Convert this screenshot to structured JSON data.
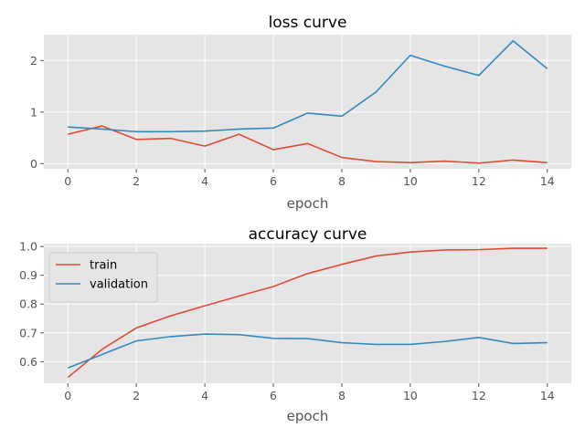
{
  "chart_data": [
    {
      "type": "line",
      "title": "loss curve",
      "xlabel": "epoch",
      "ylabel": "",
      "x": [
        0,
        1,
        2,
        3,
        4,
        5,
        6,
        7,
        8,
        9,
        10,
        11,
        12,
        13,
        14
      ],
      "xlim": [
        -0.7,
        14.7
      ],
      "ylim": [
        -0.1,
        2.5
      ],
      "xticks": [
        0,
        2,
        4,
        6,
        8,
        10,
        12,
        14
      ],
      "yticks": [
        0,
        1,
        2
      ],
      "grid": true,
      "legend": "none",
      "series": [
        {
          "color": "#E24A33",
          "values": [
            0.57,
            0.73,
            0.47,
            0.49,
            0.34,
            0.57,
            0.27,
            0.39,
            0.12,
            0.04,
            0.02,
            0.05,
            0.01,
            0.07,
            0.02
          ]
        },
        {
          "color": "#348ABD",
          "values": [
            0.71,
            0.67,
            0.62,
            0.62,
            0.63,
            0.67,
            0.69,
            0.98,
            0.92,
            1.39,
            2.1,
            1.89,
            1.71,
            2.38,
            1.84
          ]
        }
      ]
    },
    {
      "type": "line",
      "title": "accuracy curve",
      "xlabel": "epoch",
      "ylabel": "",
      "x": [
        0,
        1,
        2,
        3,
        4,
        5,
        6,
        7,
        8,
        9,
        10,
        11,
        12,
        13,
        14
      ],
      "xlim": [
        -0.7,
        14.7
      ],
      "ylim": [
        0.525,
        1.01
      ],
      "xticks": [
        0,
        2,
        4,
        6,
        8,
        10,
        12,
        14
      ],
      "yticks": [
        0.6,
        0.7,
        0.8,
        0.9,
        1.0
      ],
      "ytick_format": 1,
      "grid": true,
      "legend": "upper-left",
      "series": [
        {
          "name": "train",
          "color": "#E24A33",
          "values": [
            0.545,
            0.643,
            0.717,
            0.759,
            0.794,
            0.828,
            0.861,
            0.906,
            0.938,
            0.967,
            0.981,
            0.988,
            0.989,
            0.994,
            0.994
          ]
        },
        {
          "name": "validation",
          "color": "#348ABD",
          "values": [
            0.578,
            0.625,
            0.672,
            0.687,
            0.696,
            0.694,
            0.681,
            0.68,
            0.666,
            0.66,
            0.66,
            0.67,
            0.684,
            0.663,
            0.666
          ]
        }
      ]
    }
  ]
}
